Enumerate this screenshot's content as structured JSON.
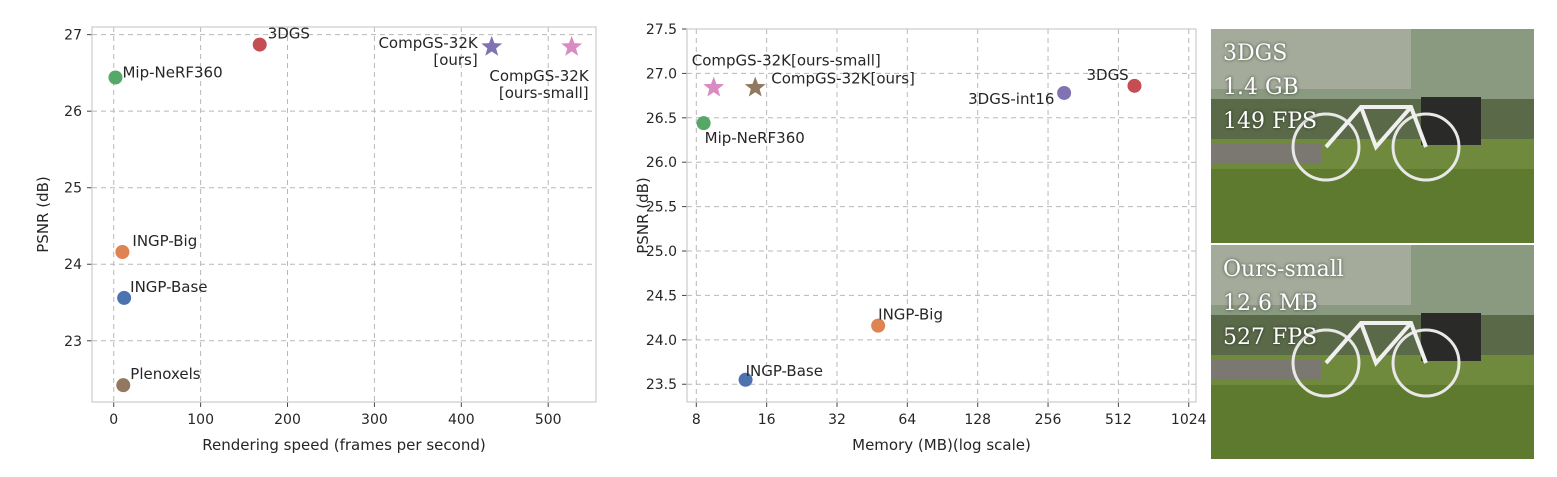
{
  "chart_data": [
    {
      "type": "scatter",
      "xlabel": "Rendering speed (frames per second)",
      "ylabel": "PSNR (dB)",
      "xlim": [
        -25,
        555
      ],
      "ylim": [
        22.2,
        27.1
      ],
      "xticks": [
        0,
        100,
        200,
        300,
        400,
        500
      ],
      "yticks": [
        23,
        24,
        25,
        26,
        27
      ],
      "grid": true,
      "points": [
        {
          "label": "Mip-NeRF360",
          "x": 2,
          "y": 26.44,
          "marker": "circle",
          "color": "#55a868"
        },
        {
          "label": "3DGS",
          "x": 168,
          "y": 26.87,
          "marker": "circle",
          "color": "#c44e52"
        },
        {
          "label": "CompGS-32K\n[ours]",
          "x": 435,
          "y": 26.84,
          "marker": "star",
          "color": "#8172b3"
        },
        {
          "label": "CompGS-32K\n[ours-small]",
          "x": 527,
          "y": 26.84,
          "marker": "star",
          "color": "#da8bc3"
        },
        {
          "label": "INGP-Big",
          "x": 10,
          "y": 24.16,
          "marker": "circle",
          "color": "#dd8452"
        },
        {
          "label": "INGP-Base",
          "x": 12,
          "y": 23.56,
          "marker": "circle",
          "color": "#4c72b0"
        },
        {
          "label": "Plenoxels",
          "x": 11,
          "y": 22.42,
          "marker": "circle",
          "color": "#937860"
        }
      ]
    },
    {
      "type": "scatter",
      "xlabel": "Memory (MB)(log scale)",
      "ylabel": "PSNR (dB)",
      "xscale": "log2",
      "xlim": [
        7.3,
        1100
      ],
      "ylim": [
        23.3,
        27.5
      ],
      "xticks": [
        8,
        16,
        32,
        64,
        128,
        256,
        512,
        1024
      ],
      "xticklabels": [
        "8",
        "16",
        "32",
        "64",
        "128",
        "256",
        "512",
        "1024"
      ],
      "yticks": [
        23.5,
        24.0,
        24.5,
        25.0,
        25.5,
        26.0,
        26.5,
        27.0,
        27.5
      ],
      "yticklabels": [
        "23.5",
        "24.0",
        "24.5",
        "25.0",
        "25.5",
        "26.0",
        "26.5",
        "27.0",
        "27.5"
      ],
      "grid": true,
      "points": [
        {
          "label": "CompGS-32K[ours-small]",
          "x": 9.5,
          "y": 26.84,
          "marker": "star",
          "color": "#da8bc3"
        },
        {
          "label": "CompGS-32K[ours]",
          "x": 14.3,
          "y": 26.84,
          "marker": "star",
          "color": "#937860"
        },
        {
          "label": "Mip-NeRF360",
          "x": 8.6,
          "y": 26.44,
          "marker": "circle",
          "color": "#55a868"
        },
        {
          "label": "3DGS-int16",
          "x": 300,
          "y": 26.78,
          "marker": "circle",
          "color": "#8172b3"
        },
        {
          "label": "3DGS",
          "x": 600,
          "y": 26.86,
          "marker": "circle",
          "color": "#c44e52"
        },
        {
          "label": "INGP-Big",
          "x": 48,
          "y": 24.16,
          "marker": "circle",
          "color": "#dd8452"
        },
        {
          "label": "INGP-Base",
          "x": 13,
          "y": 23.55,
          "marker": "circle",
          "color": "#4c72b0"
        }
      ]
    }
  ],
  "photos": [
    {
      "lines": [
        "3DGS",
        "1.4 GB",
        "149 FPS"
      ]
    },
    {
      "lines": [
        "Ours-small",
        "12.6 MB",
        "527 FPS"
      ]
    }
  ]
}
